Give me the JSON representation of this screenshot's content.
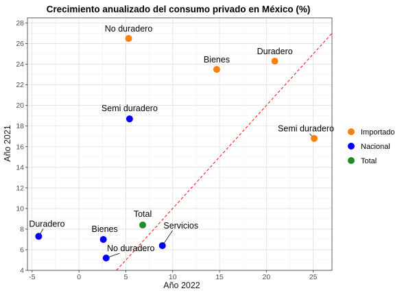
{
  "chart_data": {
    "type": "scatter",
    "title": "Crecimiento anualizado del consumo privado en México (%)",
    "xlabel": "Año 2022",
    "ylabel": "Año 2021",
    "xlim": [
      -5.5,
      27
    ],
    "ylim": [
      4,
      28.5
    ],
    "xticks": [
      -5,
      0,
      5,
      10,
      15,
      20,
      25
    ],
    "yticks": [
      4,
      6,
      8,
      10,
      12,
      14,
      16,
      18,
      20,
      22,
      24,
      26,
      28
    ],
    "grid": true,
    "reference_line": {
      "type": "identity",
      "style": "dashed",
      "color": "#ff0000"
    },
    "legend": {
      "placement": "right",
      "entries": [
        {
          "name": "Importado",
          "color": "#ff7f0e"
        },
        {
          "name": "Nacional",
          "color": "#0000ff"
        },
        {
          "name": "Total",
          "color": "#228b22"
        }
      ]
    },
    "points": [
      {
        "group": "Importado",
        "label": "No duradero",
        "x": 5.3,
        "y": 26.5
      },
      {
        "group": "Importado",
        "label": "Bienes",
        "x": 14.7,
        "y": 23.5
      },
      {
        "group": "Importado",
        "label": "Duradero",
        "x": 20.9,
        "y": 24.3
      },
      {
        "group": "Importado",
        "label": "Semi duradero",
        "x": 25.1,
        "y": 16.8
      },
      {
        "group": "Nacional",
        "label": "Semi duradero",
        "x": 5.4,
        "y": 18.7
      },
      {
        "group": "Nacional",
        "label": "Duradero",
        "x": -4.3,
        "y": 7.3
      },
      {
        "group": "Nacional",
        "label": "Bienes",
        "x": 2.6,
        "y": 7.0
      },
      {
        "group": "Nacional",
        "label": "No duradero",
        "x": 2.9,
        "y": 5.2
      },
      {
        "group": "Nacional",
        "label": "Servicios",
        "x": 8.9,
        "y": 6.4
      },
      {
        "group": "Total",
        "label": "Total",
        "x": 6.8,
        "y": 8.4
      }
    ]
  }
}
